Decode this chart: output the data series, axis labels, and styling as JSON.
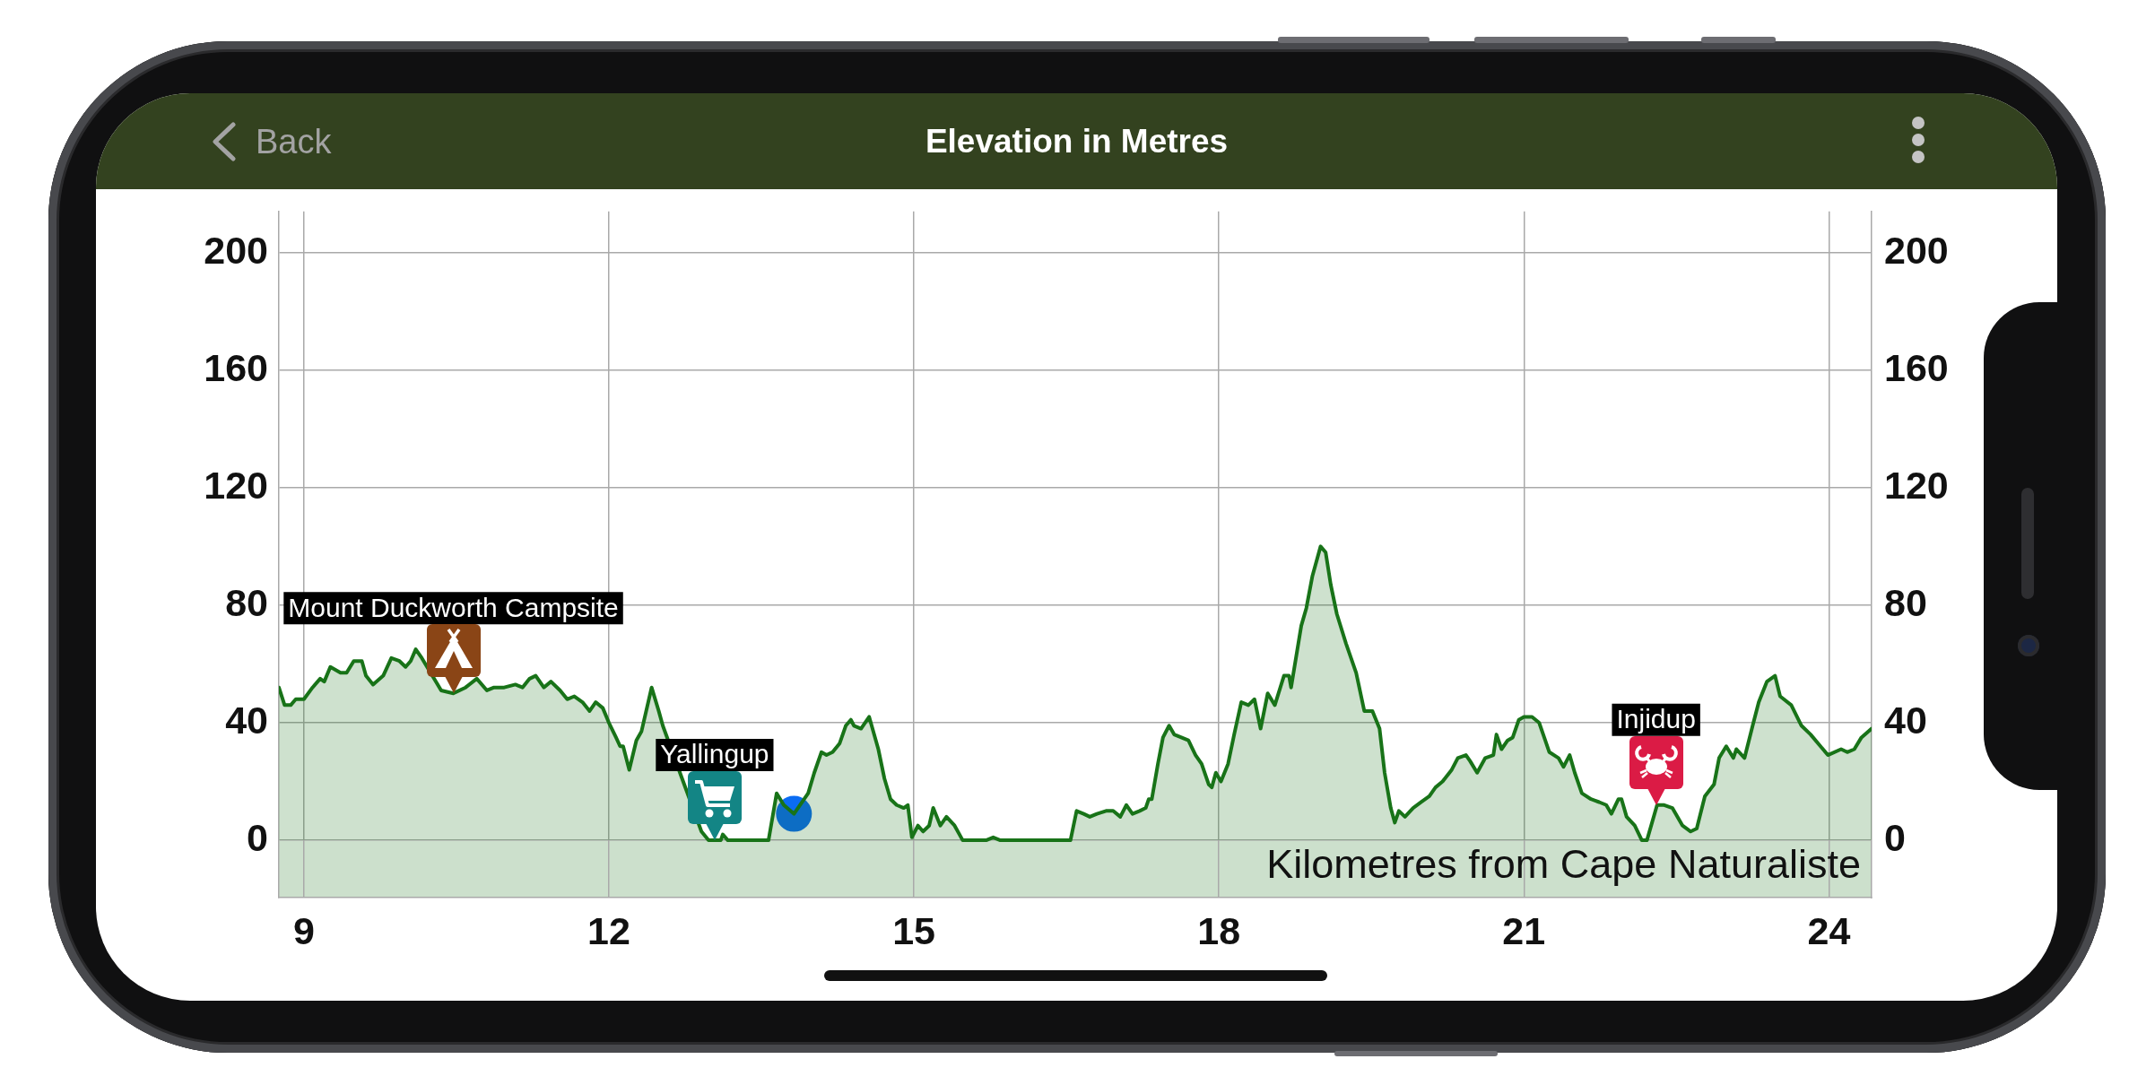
{
  "chart_data": {
    "type": "area",
    "title": "Elevation in Metres",
    "xlabel": "Kilometres from Cape Naturaliste",
    "annotations": [
      "Back",
      {
        "text": "Mount Duckworth Campsite",
        "x": 10.47,
        "y": 50
      },
      {
        "text": "Yallingup",
        "x": 13.04,
        "y": 0
      },
      {
        "text": "Injidup",
        "x": 22.3,
        "y": 12
      }
    ],
    "x": [
      8.754,
      8.81,
      8.87,
      8.92,
      9.0,
      9.085,
      9.16,
      9.2,
      9.26,
      9.36,
      9.42,
      9.49,
      9.57,
      9.61,
      9.68,
      9.78,
      9.86,
      9.94,
      10.0,
      10.05,
      10.1,
      10.16,
      10.35,
      10.47,
      10.59,
      10.7,
      10.8,
      10.87,
      10.97,
      11.08,
      11.15,
      11.22,
      11.28,
      11.36,
      11.43,
      11.52,
      11.59,
      11.66,
      11.74,
      11.81,
      11.87,
      11.94,
      12.0,
      12.07,
      12.11,
      12.14,
      12.2,
      12.27,
      12.32,
      12.42,
      12.49,
      12.53,
      12.91,
      12.98,
      13.1,
      13.12,
      13.17,
      13.57,
      13.65,
      13.72,
      13.82,
      13.96,
      14.02,
      14.09,
      14.14,
      14.2,
      14.27,
      14.33,
      14.38,
      14.41,
      14.48,
      14.56,
      14.65,
      14.71,
      14.77,
      14.83,
      14.9,
      14.94,
      14.98,
      15.04,
      15.09,
      15.15,
      15.19,
      15.26,
      15.32,
      15.4,
      15.48,
      15.71,
      15.78,
      15.85,
      16.54,
      16.6,
      16.67,
      16.73,
      16.8,
      16.89,
      16.96,
      17.03,
      17.09,
      17.15,
      17.22,
      17.28,
      17.31,
      17.34,
      17.4,
      17.45,
      17.51,
      17.56,
      17.63,
      17.7,
      17.77,
      17.83,
      17.9,
      17.93,
      17.97,
      18.02,
      18.09,
      18.15,
      18.22,
      18.29,
      18.35,
      18.41,
      18.48,
      18.55,
      18.64,
      18.69,
      18.71,
      18.81,
      18.86,
      18.92,
      19.0,
      19.05,
      19.1,
      19.16,
      19.25,
      19.35,
      19.43,
      19.51,
      19.58,
      19.63,
      19.69,
      19.73,
      19.77,
      19.83,
      19.91,
      19.99,
      20.07,
      20.13,
      20.2,
      20.29,
      20.35,
      20.43,
      20.47,
      20.54,
      20.62,
      20.7,
      20.73,
      20.78,
      20.84,
      20.89,
      20.95,
      21.0,
      21.08,
      21.15,
      21.2,
      21.25,
      21.34,
      21.39,
      21.45,
      21.5,
      21.57,
      21.66,
      21.74,
      21.81,
      21.86,
      21.93,
      21.96,
      22.01,
      22.09,
      22.16,
      22.21,
      22.31,
      22.38,
      22.46,
      22.56,
      22.64,
      22.7,
      22.78,
      22.87,
      22.92,
      22.99,
      23.06,
      23.09,
      23.17,
      23.25,
      23.31,
      23.39,
      23.47,
      23.52,
      23.63,
      23.73,
      23.82,
      23.99,
      24.12,
      24.18,
      24.25,
      24.32,
      24.42
    ],
    "series": [
      {
        "color": "#187318",
        "values": [
          52,
          46,
          46,
          48,
          48,
          52,
          55,
          54,
          59,
          57,
          57,
          61,
          61,
          56,
          53,
          56,
          62,
          61,
          59,
          61,
          65,
          62,
          51,
          50,
          52,
          55,
          51,
          52,
          52,
          53,
          52,
          55,
          56,
          52,
          54,
          51,
          48,
          49,
          47,
          44,
          47,
          45,
          40,
          35,
          32,
          32,
          24,
          34,
          37,
          52,
          44,
          39,
          3,
          0,
          0,
          2,
          0,
          0,
          16,
          12,
          9,
          16,
          23,
          30,
          29,
          30,
          33,
          39,
          41,
          39,
          38,
          42,
          31,
          21,
          14,
          12,
          11,
          12,
          1,
          5,
          3,
          5,
          11,
          5,
          8,
          5,
          0,
          0,
          1,
          0,
          0,
          10,
          9,
          8,
          9,
          10,
          10,
          8,
          12,
          9,
          10,
          11,
          14,
          14,
          26,
          35,
          39,
          36,
          35,
          34,
          29,
          26,
          19,
          18,
          23,
          20,
          26,
          36,
          47,
          46,
          48,
          38,
          50,
          46,
          56,
          56,
          52,
          73,
          79,
          90,
          100,
          98,
          87,
          77,
          67,
          57,
          44,
          44,
          38,
          23,
          11,
          6,
          10,
          8,
          11,
          13,
          15,
          18,
          20,
          24,
          28,
          29,
          27,
          23,
          28,
          29,
          36,
          31,
          34,
          35,
          41,
          42,
          42,
          40,
          35,
          30,
          28,
          25,
          29,
          23,
          16,
          14,
          13,
          12,
          9,
          14,
          14,
          8,
          5,
          0,
          0,
          12,
          12,
          11,
          5,
          3,
          4,
          15,
          19,
          28,
          32,
          28,
          31,
          28,
          39,
          47,
          54,
          56,
          49,
          46,
          39,
          36,
          29,
          31,
          30,
          31,
          35,
          38
        ]
      },
      {
        "type": "scatter",
        "color": "#0b6cf3",
        "marker": "circle",
        "x": [
          13.82
        ],
        "values": [
          9
        ]
      }
    ],
    "bands": [
      {
        "axis": "y",
        "from": -19.5,
        "to": 0,
        "color": "#cce0cc"
      }
    ],
    "xlim": [
      8.754,
      24.42
    ],
    "xticks": [
      9,
      12,
      15,
      18,
      21,
      24
    ],
    "ylim": [
      -19.5,
      214
    ],
    "yticks": [
      0,
      40,
      80,
      120,
      160,
      200
    ],
    "y2lim": [
      -19.5,
      214
    ],
    "y2ticks": [
      0,
      40,
      80,
      120,
      160,
      200
    ],
    "grid": true
  }
}
